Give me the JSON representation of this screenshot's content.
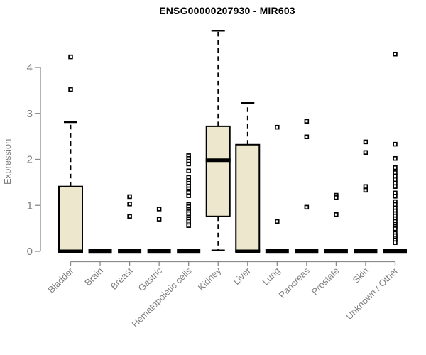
{
  "title": "ENSG00000207930 - MIR603",
  "ylabel": "Expression",
  "colors": {
    "background": "#FFFFFF",
    "box_fill": "#EDE8CD",
    "box_stroke": "#000000",
    "axis": "#8A8A8A",
    "tick_label": "#7E7E7E",
    "title": "#000000"
  },
  "chart_data": {
    "type": "boxplot",
    "title": "ENSG00000207930 - MIR603",
    "xlabel": "",
    "ylabel": "Expression",
    "ylim": [
      0,
      4.9
    ],
    "yticks": [
      0,
      1,
      2,
      3,
      4
    ],
    "grid": false,
    "legend": "none",
    "categories": [
      "Bladder",
      "Brain",
      "Breast",
      "Gastric",
      "Hematopoietic cells",
      "Kidney",
      "Liver",
      "Lung",
      "Pancreas",
      "Prostate",
      "Skin",
      "Unknown / Other"
    ],
    "series": [
      {
        "name": "Bladder",
        "whisker_low": 0,
        "q1": 0,
        "median": 0,
        "q3": 1.41,
        "whisker_high": 2.81,
        "outliers": [
          3.52,
          4.23
        ]
      },
      {
        "name": "Brain",
        "whisker_low": 0,
        "q1": 0,
        "median": 0,
        "q3": 0,
        "whisker_high": 0,
        "outliers": []
      },
      {
        "name": "Breast",
        "whisker_low": 0,
        "q1": 0,
        "median": 0,
        "q3": 0,
        "whisker_high": 0,
        "outliers": [
          1.19,
          1.03,
          0.76
        ]
      },
      {
        "name": "Gastric",
        "whisker_low": 0,
        "q1": 0,
        "median": 0,
        "q3": 0,
        "whisker_high": 0,
        "outliers": [
          0.92,
          0.7
        ]
      },
      {
        "name": "Hematopoietic cells",
        "whisker_low": 0,
        "q1": 0,
        "median": 0,
        "q3": 0,
        "whisker_high": 0,
        "outliers": [
          2.08,
          2.02,
          1.96,
          1.9,
          1.75,
          1.61,
          1.54,
          1.48,
          1.42,
          1.36,
          1.31,
          1.28,
          1.21,
          1.02,
          0.97,
          0.91,
          0.86,
          0.82,
          0.74,
          0.7,
          0.65,
          0.6,
          0.56
        ]
      },
      {
        "name": "Kidney",
        "whisker_low": 0.02,
        "q1": 0.76,
        "median": 1.98,
        "q3": 2.72,
        "whisker_high": 4.8,
        "outliers": []
      },
      {
        "name": "Liver",
        "whisker_low": 0,
        "q1": 0,
        "median": 0,
        "q3": 2.32,
        "whisker_high": 3.23,
        "outliers": []
      },
      {
        "name": "Lung",
        "whisker_low": 0,
        "q1": 0,
        "median": 0,
        "q3": 0,
        "whisker_high": 0,
        "outliers": [
          2.7,
          0.65
        ]
      },
      {
        "name": "Pancreas",
        "whisker_low": 0,
        "q1": 0,
        "median": 0,
        "q3": 0,
        "whisker_high": 0,
        "outliers": [
          2.83,
          2.49,
          0.96
        ]
      },
      {
        "name": "Prostate",
        "whisker_low": 0,
        "q1": 0,
        "median": 0,
        "q3": 0,
        "whisker_high": 0,
        "outliers": [
          1.22,
          1.17,
          0.8
        ]
      },
      {
        "name": "Skin",
        "whisker_low": 0,
        "q1": 0,
        "median": 0,
        "q3": 0,
        "whisker_high": 0,
        "outliers": [
          2.38,
          2.15,
          1.41,
          1.33
        ]
      },
      {
        "name": "Unknown / Other",
        "whisker_low": 0,
        "q1": 0,
        "median": 0,
        "q3": 0,
        "whisker_high": 0,
        "outliers": [
          4.29,
          2.33,
          2.02,
          1.82,
          1.71,
          1.64,
          1.56,
          1.48,
          1.41,
          1.27,
          1.2,
          1.08,
          1.02,
          0.94,
          0.88,
          0.82,
          0.77,
          0.71,
          0.65,
          0.59,
          0.54,
          0.49,
          0.39,
          0.34,
          0.29,
          0.25,
          0.19
        ]
      }
    ]
  }
}
